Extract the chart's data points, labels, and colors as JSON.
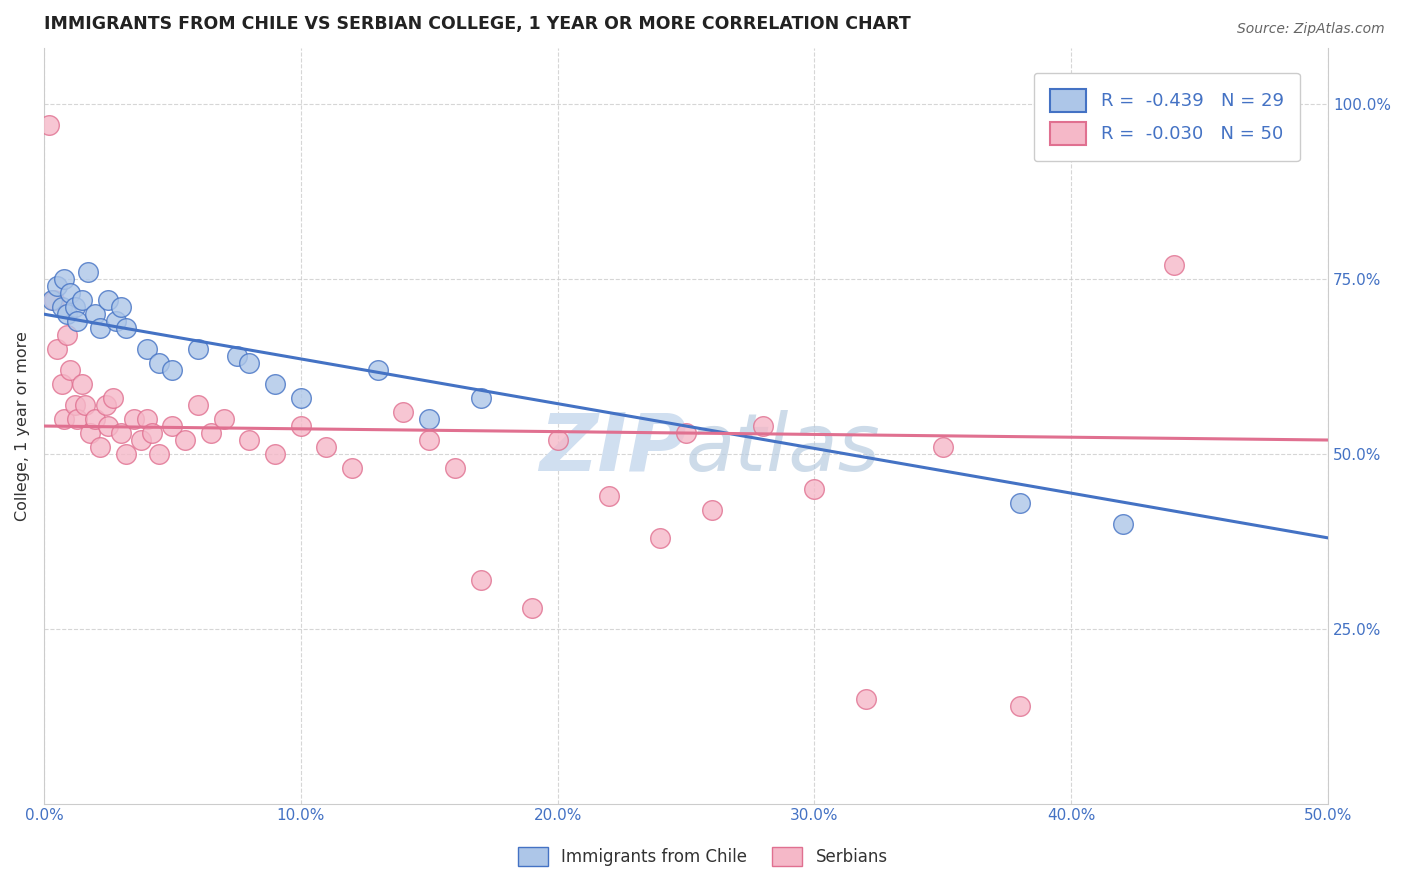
{
  "title": "IMMIGRANTS FROM CHILE VS SERBIAN COLLEGE, 1 YEAR OR MORE CORRELATION CHART",
  "source_text": "Source: ZipAtlas.com",
  "ylabel": "College, 1 year or more",
  "legend_label_1": "Immigrants from Chile",
  "legend_label_2": "Serbians",
  "r1": -0.439,
  "n1": 29,
  "r2": -0.03,
  "n2": 50,
  "color_blue": "#adc6e8",
  "color_pink": "#f5b8c8",
  "line_blue": "#4472c4",
  "line_pink": "#e07090",
  "watermark_color": "#d0dff0",
  "background_color": "#ffffff",
  "grid_color": "#cccccc",
  "xlim": [
    0.0,
    0.5
  ],
  "ylim": [
    0.0,
    1.08
  ],
  "xtick_vals": [
    0.0,
    0.1,
    0.2,
    0.3,
    0.4,
    0.5
  ],
  "ytick_vals": [
    0.25,
    0.5,
    0.75,
    1.0
  ],
  "blue_x": [
    0.003,
    0.005,
    0.007,
    0.008,
    0.009,
    0.01,
    0.012,
    0.013,
    0.015,
    0.017,
    0.02,
    0.022,
    0.025,
    0.028,
    0.03,
    0.032,
    0.04,
    0.045,
    0.05,
    0.06,
    0.075,
    0.08,
    0.09,
    0.1,
    0.13,
    0.15,
    0.17,
    0.38,
    0.42
  ],
  "blue_y": [
    0.72,
    0.74,
    0.71,
    0.75,
    0.7,
    0.73,
    0.71,
    0.69,
    0.72,
    0.76,
    0.7,
    0.68,
    0.72,
    0.69,
    0.71,
    0.68,
    0.65,
    0.63,
    0.62,
    0.65,
    0.64,
    0.63,
    0.6,
    0.58,
    0.62,
    0.55,
    0.58,
    0.43,
    0.4
  ],
  "pink_x": [
    0.002,
    0.004,
    0.005,
    0.007,
    0.008,
    0.009,
    0.01,
    0.012,
    0.013,
    0.015,
    0.016,
    0.018,
    0.02,
    0.022,
    0.024,
    0.025,
    0.027,
    0.03,
    0.032,
    0.035,
    0.038,
    0.04,
    0.042,
    0.045,
    0.05,
    0.055,
    0.06,
    0.065,
    0.07,
    0.08,
    0.09,
    0.1,
    0.11,
    0.12,
    0.14,
    0.15,
    0.16,
    0.17,
    0.19,
    0.2,
    0.22,
    0.24,
    0.25,
    0.26,
    0.28,
    0.3,
    0.32,
    0.35,
    0.38,
    0.44
  ],
  "pink_y": [
    0.97,
    0.72,
    0.65,
    0.6,
    0.55,
    0.67,
    0.62,
    0.57,
    0.55,
    0.6,
    0.57,
    0.53,
    0.55,
    0.51,
    0.57,
    0.54,
    0.58,
    0.53,
    0.5,
    0.55,
    0.52,
    0.55,
    0.53,
    0.5,
    0.54,
    0.52,
    0.57,
    0.53,
    0.55,
    0.52,
    0.5,
    0.54,
    0.51,
    0.48,
    0.56,
    0.52,
    0.48,
    0.32,
    0.28,
    0.52,
    0.44,
    0.38,
    0.53,
    0.42,
    0.54,
    0.45,
    0.15,
    0.51,
    0.14,
    0.77
  ],
  "blue_line_x0": 0.0,
  "blue_line_y0": 0.7,
  "blue_line_x1": 0.5,
  "blue_line_y1": 0.38,
  "pink_line_x0": 0.0,
  "pink_line_y0": 0.54,
  "pink_line_x1": 0.5,
  "pink_line_y1": 0.52
}
